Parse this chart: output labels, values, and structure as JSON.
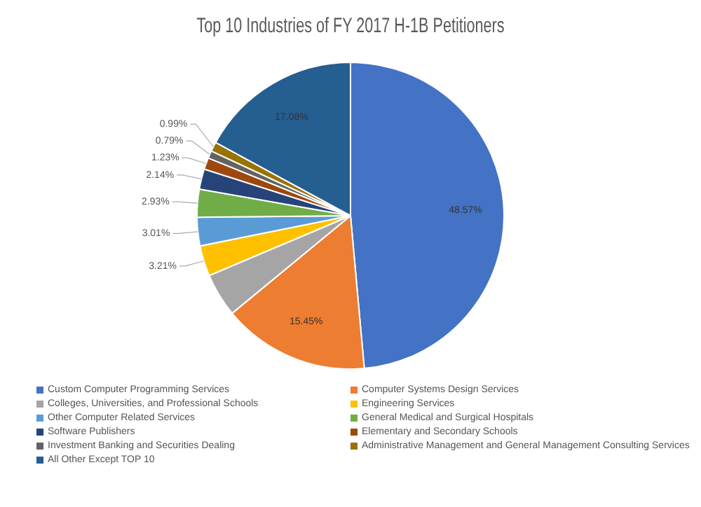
{
  "chart_data": {
    "type": "pie",
    "title": "Top 10 Industries of FY 2017 H-1B Petitioners",
    "categories": [
      "Custom Computer Programming Services",
      "Computer Systems Design Services",
      "Colleges, Universities, and Professional Schools",
      "Engineering Services",
      "Other Computer Related Services",
      "General Medical and Surgical Hospitals",
      "Software Publishers",
      "Elementary and Secondary Schools",
      "Investment Banking and Securities Dealing",
      "Administrative Management and General Management Consulting Services",
      "All Other Except TOP 10"
    ],
    "values": [
      48.57,
      15.45,
      4.6,
      3.21,
      3.01,
      2.93,
      2.14,
      1.23,
      0.79,
      0.99,
      17.08
    ],
    "colors": [
      "#4472c4",
      "#ed7d31",
      "#a5a5a5",
      "#ffc000",
      "#5b9bd5",
      "#70ad47",
      "#264478",
      "#9e480e",
      "#636363",
      "#997300",
      "#255e91"
    ],
    "value_labels": [
      "48.57%",
      "15.45%",
      null,
      "3.21%",
      "3.01%",
      "2.93%",
      "2.14%",
      "1.23%",
      "0.79%",
      "0.99%",
      "17.08%"
    ],
    "legend": "bottom"
  }
}
